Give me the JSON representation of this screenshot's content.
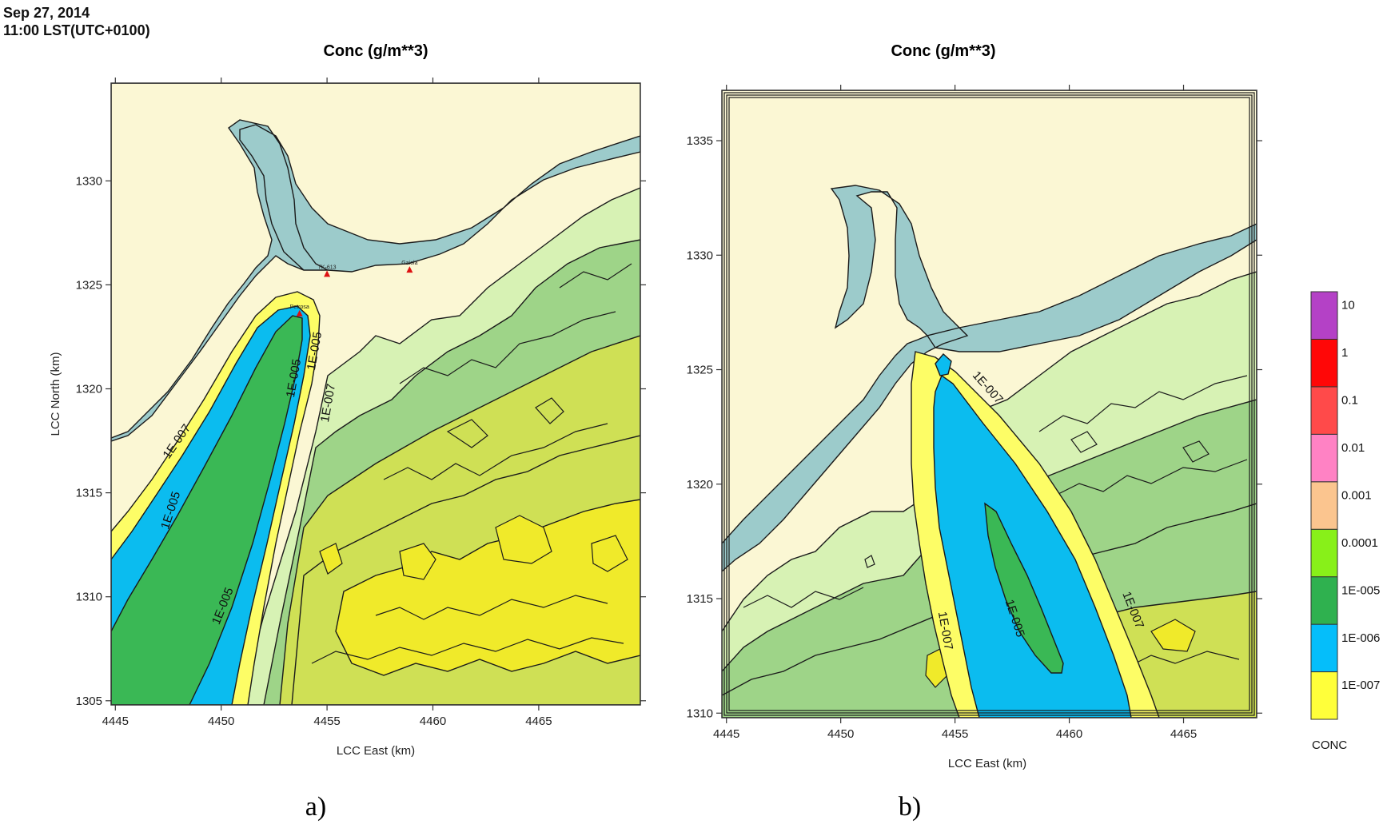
{
  "header": {
    "date": "Sep 27, 2014",
    "time": "11:00 LST(UTC+0100)"
  },
  "colors": {
    "sea": "#9ccbcb",
    "land_low": "#fbf7d4",
    "land_mid": "#d7f2b4",
    "land_green": "#9ed488",
    "land_high": "#cfe055",
    "land_peak": "#f0ea2a",
    "conc_1e7": "#fdfd66",
    "conc_1e6": "#0bbcef",
    "conc_1e5": "#3ab855"
  },
  "chart_data": [
    {
      "type": "heatmap",
      "panel": "a)",
      "title": "Conc (g/m**3)",
      "xlabel": "LCC East (km)",
      "ylabel": "LCC North (km)",
      "xlim": [
        4444.8,
        4469.8
      ],
      "ylim": [
        1304.8,
        1334.7
      ],
      "xticks": [
        4445,
        4450,
        4455,
        4460,
        4465
      ],
      "yticks": [
        1305,
        1310,
        1315,
        1320,
        1325,
        1330
      ],
      "contour_labels": [
        "1E-007",
        "1E-005",
        "1E-005",
        "1E-005",
        "1E-005",
        "1E-007"
      ],
      "receptors": [
        {
          "name": "TK-613",
          "x": 4455.0,
          "y": 1325.5
        },
        {
          "name": "Gaiola",
          "x": 4458.9,
          "y": 1325.7
        },
        {
          "name": "Petrosa",
          "x": 4453.7,
          "y": 1323.6
        }
      ]
    },
    {
      "type": "heatmap",
      "panel": "b)",
      "title": "Conc (g/m**3)",
      "xlabel": "LCC East (km)",
      "ylabel": "",
      "xlim": [
        4444.8,
        4468.2
      ],
      "ylim": [
        1309.8,
        1337.2
      ],
      "xticks": [
        4445,
        4450,
        4455,
        4460,
        4465
      ],
      "yticks": [
        1310,
        1315,
        1320,
        1325,
        1330,
        1335
      ],
      "contour_labels": [
        "1E-007",
        "1E-005",
        "1E-007",
        "1E-007"
      ],
      "legend": {
        "title": "CONC",
        "levels": [
          "1E-007",
          "1E-006",
          "1E-005",
          "0.0001",
          "0.001",
          "0.01",
          "0.1",
          "1",
          "10"
        ],
        "colors": [
          "#ffff3a",
          "#05befa",
          "#2fb14f",
          "#88f019",
          "#fbc58f",
          "#ff82c4",
          "#ff4a4a",
          "#ff0707",
          "#b441c6"
        ]
      }
    }
  ]
}
